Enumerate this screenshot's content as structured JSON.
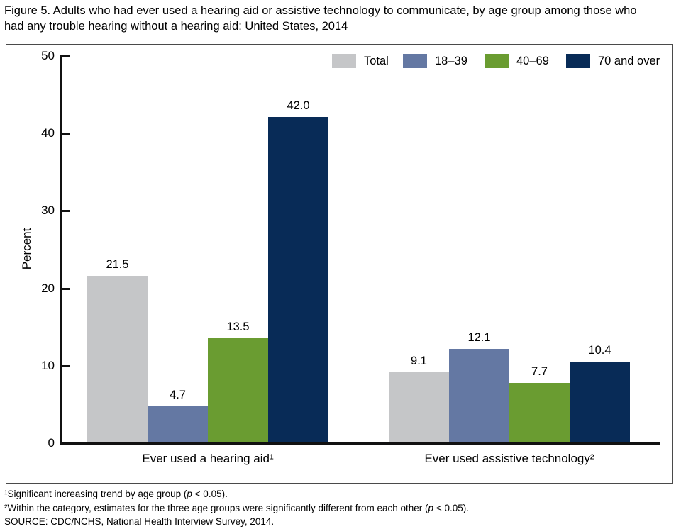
{
  "title": "Figure 5. Adults who had ever used a hearing aid or assistive technology to communicate, by age group among those who had any trouble hearing without a hearing aid: United States, 2014",
  "chart_data": {
    "type": "bar",
    "title": "Figure 5. Adults who had ever used a hearing aid or assistive technology to communicate, by age group among those who had any trouble hearing without a hearing aid: United States, 2014",
    "ylabel": "Percent",
    "ylim": [
      0,
      50
    ],
    "yticks": [
      0,
      10,
      20,
      30,
      40,
      50
    ],
    "grid": false,
    "legend_position": "top-right",
    "categories": [
      "Ever used a hearing aid¹",
      "Ever used assistive technology²"
    ],
    "series": [
      {
        "name": "Total",
        "color": "#c5c6c8",
        "values": [
          21.5,
          9.1
        ]
      },
      {
        "name": "18–39",
        "color": "#6478a3",
        "values": [
          4.7,
          12.1
        ]
      },
      {
        "name": "40–69",
        "color": "#6a9c31",
        "values": [
          13.5,
          7.7
        ]
      },
      {
        "name": "70 and over",
        "color": "#082b57",
        "values": [
          42.0,
          10.4
        ]
      }
    ]
  },
  "footnotes": {
    "note1": {
      "pre": "¹Significant increasing trend by age group (",
      "em": "p",
      "post": " < 0.05)."
    },
    "note2": {
      "pre": "²Within the category, estimates for the three age groups were significantly different from each other (",
      "em": "p",
      "post": " < 0.05)."
    },
    "source": "SOURCE: CDC/NCHS, National Health Interview Survey, 2014."
  }
}
